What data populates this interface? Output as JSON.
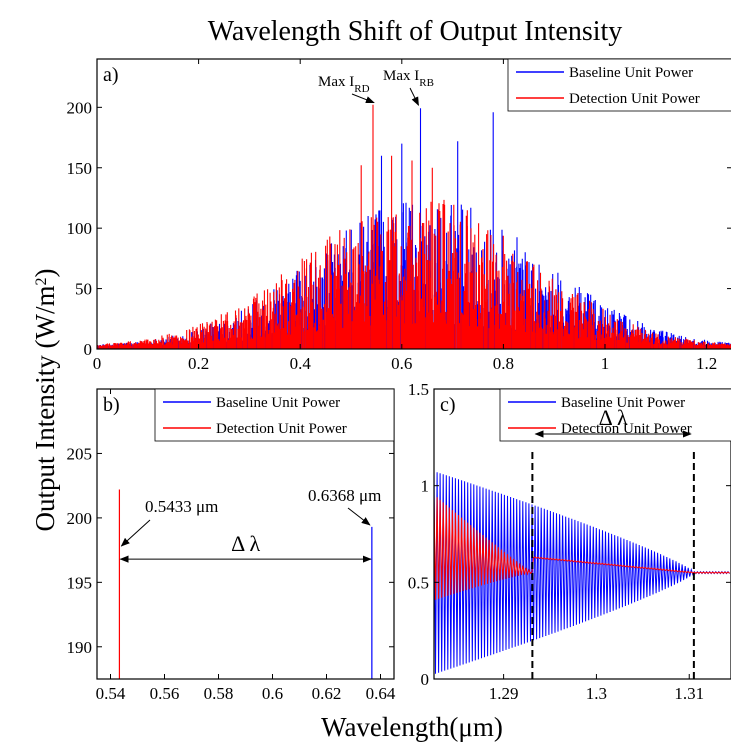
{
  "chart_data": {
    "title": "Wavelength Shift of Output Intensity",
    "ylabel": "Output Intensity (W/m",
    "ylabel_sup": "2",
    "ylabel_close": ")",
    "xlabel": "Wavelength(μm)",
    "panels": [
      {
        "id": "a",
        "label": "a)",
        "type": "line",
        "xlim": [
          0,
          1.25
        ],
        "ylim": [
          0,
          240
        ],
        "xticks": [
          0,
          0.2,
          0.4,
          0.6,
          0.8,
          1,
          1.2
        ],
        "xtick_labels": [
          "0",
          "0.2",
          "0.4",
          "0.6",
          "0.8",
          "1",
          "1.2"
        ],
        "yticks": [
          0,
          50,
          100,
          150,
          200
        ],
        "ytick_labels": [
          "0",
          "50",
          "100",
          "150",
          "200"
        ],
        "legend_position": "top-right",
        "series": [
          {
            "name": "Baseline Unit Power",
            "color": "#0000ff",
            "envelope_center": 0.65,
            "envelope_width": 0.22,
            "peak_x": 0.6368,
            "peak_y": 199.3,
            "secondary_peaks": [
              [
                0.6,
                170
              ],
              [
                0.71,
                172
              ],
              [
                0.78,
                196
              ],
              [
                0.56,
                160
              ]
            ]
          },
          {
            "name": "Detection Unit Power",
            "color": "#ff0000",
            "envelope_center": 0.63,
            "envelope_width": 0.22,
            "peak_x": 0.5433,
            "peak_y": 202.2,
            "secondary_peaks": [
              [
                0.52,
                152
              ],
              [
                0.58,
                160
              ],
              [
                0.66,
                150
              ],
              [
                0.62,
                156
              ]
            ]
          }
        ],
        "annotations": [
          {
            "base": "Max I",
            "sub": "RD",
            "x": 0.5433,
            "y": 202.2
          },
          {
            "base": "Max I",
            "sub": "RB",
            "x": 0.6368,
            "y": 199.3
          }
        ]
      },
      {
        "id": "b",
        "label": "b)",
        "type": "line",
        "xlim": [
          0.535,
          0.645
        ],
        "ylim": [
          187.5,
          210
        ],
        "xticks": [
          0.54,
          0.56,
          0.58,
          0.6,
          0.62,
          0.64
        ],
        "xtick_labels": [
          "0.54",
          "0.56",
          "0.58",
          "0.6",
          "0.62",
          "0.64"
        ],
        "yticks": [
          190,
          195,
          200,
          205
        ],
        "ytick_labels": [
          "190",
          "195",
          "200",
          "205"
        ],
        "legend_position": "top-right",
        "series": [
          {
            "name": "Baseline Unit Power",
            "color": "#0000ff",
            "x": [
              0.6368,
              0.6368
            ],
            "y": [
              187.5,
              199.3
            ]
          },
          {
            "name": "Detection Unit Power",
            "color": "#ff0000",
            "x": [
              0.5433,
              0.5433
            ],
            "y": [
              187.5,
              202.2
            ]
          }
        ],
        "annotations": [
          {
            "text": "0.5433 μm",
            "x": 0.5433
          },
          {
            "text": "0.6368 μm",
            "x": 0.6368
          },
          {
            "text": "Δ λ",
            "x_from": 0.5433,
            "x_to": 0.6368,
            "y": 196.8
          }
        ]
      },
      {
        "id": "c",
        "label": "c)",
        "type": "line",
        "xlim": [
          1.2825,
          1.3145
        ],
        "ylim": [
          0,
          1.5
        ],
        "xticks": [
          1.29,
          1.3,
          1.31
        ],
        "xtick_labels": [
          "1.29",
          "1.3",
          "1.31"
        ],
        "yticks": [
          0,
          0.5,
          1,
          1.5
        ],
        "ytick_labels": [
          "0",
          "0.5",
          "1",
          "1.5"
        ],
        "legend_position": "top-right",
        "series": [
          {
            "name": "Baseline Unit Power",
            "color": "#0000ff",
            "center": 0.55,
            "amplitude_start": 0.52,
            "converge_x": 1.3105
          },
          {
            "name": "Detection Unit Power",
            "color": "#ff0000",
            "center_start": 0.68,
            "center_end": 0.55,
            "amplitude_start": 0.27,
            "converge_x": 1.2931
          }
        ],
        "annotations": [
          {
            "text": "Δ λ",
            "x_from": 1.2931,
            "x_to": 1.3105,
            "y": 1.05
          }
        ],
        "dashed_lines_x": [
          1.2931,
          1.3105
        ]
      }
    ]
  }
}
